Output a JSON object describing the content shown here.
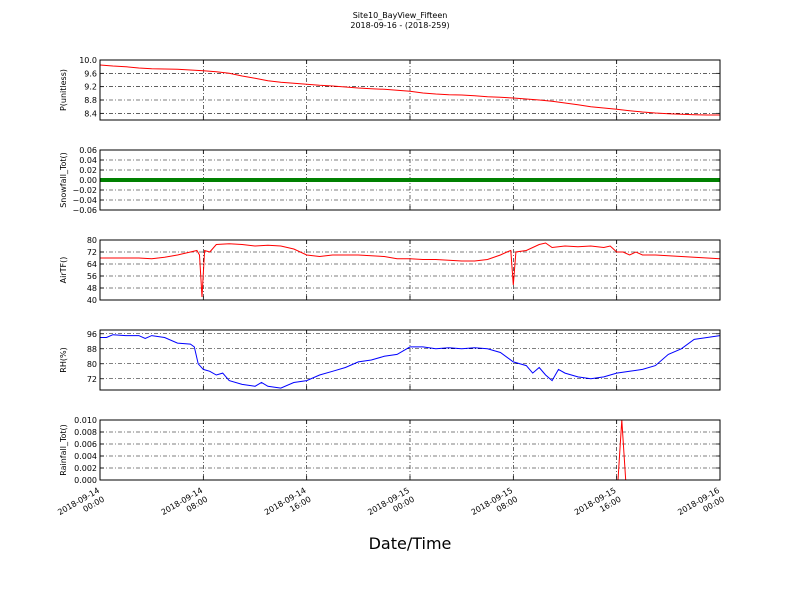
{
  "figure": {
    "title": "Site10_BayView_Fifteen",
    "subtitle": "2018-09-16 - (2018-259)",
    "xlabel": "Date/Time"
  },
  "chart_data": {
    "type": "line",
    "shared_x_ticks": [
      {
        "value": 0,
        "line1": "2018-09-14",
        "line2": "00:00"
      },
      {
        "value": 8,
        "line1": "2018-09-14",
        "line2": "08:00"
      },
      {
        "value": 16,
        "line1": "2018-09-14",
        "line2": "16:00"
      },
      {
        "value": 24,
        "line1": "2018-09-15",
        "line2": "00:00"
      },
      {
        "value": 32,
        "line1": "2018-09-15",
        "line2": "08:00"
      },
      {
        "value": 40,
        "line1": "2018-09-15",
        "line2": "16:00"
      },
      {
        "value": 48,
        "line1": "2018-09-16",
        "line2": "00:00"
      }
    ],
    "x_range_hours": [
      0,
      48
    ],
    "grid": true,
    "panels": [
      {
        "name": "p-unitless",
        "ylabel": "P(unitless)",
        "ylim": [
          8.2,
          10.0
        ],
        "yticks": [
          "10.0",
          "9.6",
          "9.2",
          "8.8",
          "8.4"
        ],
        "ytick_values": [
          10.0,
          9.6,
          9.2,
          8.8,
          8.4
        ],
        "color": "#ff0000",
        "points": [
          [
            0,
            9.85
          ],
          [
            1,
            9.82
          ],
          [
            2,
            9.8
          ],
          [
            3,
            9.76
          ],
          [
            4,
            9.74
          ],
          [
            5,
            9.73
          ],
          [
            6,
            9.72
          ],
          [
            7,
            9.7
          ],
          [
            8,
            9.68
          ],
          [
            9,
            9.65
          ],
          [
            10,
            9.6
          ],
          [
            11,
            9.52
          ],
          [
            12,
            9.45
          ],
          [
            13,
            9.38
          ],
          [
            14,
            9.33
          ],
          [
            15,
            9.3
          ],
          [
            16,
            9.27
          ],
          [
            17,
            9.24
          ],
          [
            18,
            9.22
          ],
          [
            19,
            9.19
          ],
          [
            20,
            9.16
          ],
          [
            21,
            9.14
          ],
          [
            22,
            9.12
          ],
          [
            23,
            9.09
          ],
          [
            24,
            9.06
          ],
          [
            25,
            9.01
          ],
          [
            26,
            8.98
          ],
          [
            27,
            8.96
          ],
          [
            28,
            8.95
          ],
          [
            29,
            8.93
          ],
          [
            30,
            8.9
          ],
          [
            31,
            8.88
          ],
          [
            32,
            8.86
          ],
          [
            33,
            8.83
          ],
          [
            34,
            8.8
          ],
          [
            35,
            8.76
          ],
          [
            36,
            8.71
          ],
          [
            37,
            8.66
          ],
          [
            38,
            8.6
          ],
          [
            39,
            8.56
          ],
          [
            40,
            8.52
          ],
          [
            41,
            8.48
          ],
          [
            42,
            8.44
          ],
          [
            43,
            8.41
          ],
          [
            44,
            8.39
          ],
          [
            45,
            8.37
          ],
          [
            46,
            8.36
          ],
          [
            47,
            8.35
          ],
          [
            48,
            8.35
          ]
        ]
      },
      {
        "name": "snowfall-tot",
        "ylabel": "Snowfall_Tot()",
        "ylim": [
          -0.06,
          0.06
        ],
        "yticks": [
          "0.06",
          "0.04",
          "0.02",
          "0.00",
          "−0.02",
          "−0.04",
          "−0.06"
        ],
        "ytick_values": [
          0.06,
          0.04,
          0.02,
          0.0,
          -0.02,
          -0.04,
          -0.06
        ],
        "color": "#008000",
        "style": "dense-markers",
        "points": [
          [
            0,
            0
          ],
          [
            48,
            0
          ]
        ]
      },
      {
        "name": "airtf",
        "ylabel": "AirTF()",
        "ylim": [
          40,
          80
        ],
        "yticks": [
          "80",
          "72",
          "64",
          "56",
          "48",
          "40"
        ],
        "ytick_values": [
          80,
          72,
          64,
          56,
          48,
          40
        ],
        "color": "#ff0000",
        "points": [
          [
            0,
            68
          ],
          [
            1,
            68
          ],
          [
            2,
            68
          ],
          [
            3,
            68
          ],
          [
            4,
            67.5
          ],
          [
            5,
            68.5
          ],
          [
            6,
            70
          ],
          [
            7,
            72
          ],
          [
            7.5,
            73
          ],
          [
            7.7,
            70
          ],
          [
            7.9,
            42
          ],
          [
            8.1,
            73
          ],
          [
            8.5,
            72
          ],
          [
            9,
            77
          ],
          [
            10,
            77.5
          ],
          [
            11,
            77
          ],
          [
            12,
            76
          ],
          [
            13,
            76.5
          ],
          [
            14,
            76
          ],
          [
            15,
            74
          ],
          [
            16,
            70
          ],
          [
            17,
            69
          ],
          [
            18,
            70
          ],
          [
            19,
            70
          ],
          [
            20,
            70
          ],
          [
            21,
            69.5
          ],
          [
            22,
            69
          ],
          [
            23,
            67.5
          ],
          [
            24,
            67.5
          ],
          [
            25,
            67
          ],
          [
            26,
            67
          ],
          [
            27,
            66.5
          ],
          [
            28,
            66
          ],
          [
            29,
            66
          ],
          [
            30,
            67
          ],
          [
            31,
            70
          ],
          [
            31.5,
            72
          ],
          [
            31.8,
            73
          ],
          [
            32,
            50
          ],
          [
            32.2,
            72
          ],
          [
            33,
            73
          ],
          [
            34,
            77
          ],
          [
            34.5,
            78
          ],
          [
            35,
            75
          ],
          [
            36,
            76
          ],
          [
            37,
            75.5
          ],
          [
            38,
            76
          ],
          [
            39,
            75
          ],
          [
            39.5,
            76
          ],
          [
            40,
            72
          ],
          [
            40.5,
            72
          ],
          [
            41,
            70
          ],
          [
            41.5,
            72
          ],
          [
            42,
            70
          ],
          [
            43,
            70
          ],
          [
            44,
            69.5
          ],
          [
            45,
            69
          ],
          [
            46,
            68.5
          ],
          [
            47,
            68
          ],
          [
            48,
            67.5
          ]
        ]
      },
      {
        "name": "rh",
        "ylabel": "RH(%)",
        "ylim": [
          66,
          98
        ],
        "yticks": [
          "96",
          "88",
          "80",
          "72"
        ],
        "ytick_values": [
          96,
          88,
          80,
          72
        ],
        "color": "#0000ff",
        "points": [
          [
            0,
            94
          ],
          [
            0.5,
            94
          ],
          [
            1,
            95.5
          ],
          [
            2,
            95
          ],
          [
            3,
            95
          ],
          [
            3.5,
            93.5
          ],
          [
            4,
            95
          ],
          [
            5,
            94
          ],
          [
            6,
            91
          ],
          [
            7,
            90.5
          ],
          [
            7.3,
            89
          ],
          [
            7.6,
            80
          ],
          [
            8,
            77
          ],
          [
            8.5,
            76
          ],
          [
            9,
            74
          ],
          [
            9.5,
            75
          ],
          [
            10,
            71
          ],
          [
            11,
            69
          ],
          [
            12,
            68
          ],
          [
            12.5,
            70
          ],
          [
            13,
            68
          ],
          [
            14,
            67
          ],
          [
            15,
            70
          ],
          [
            16,
            71
          ],
          [
            17,
            74
          ],
          [
            18,
            76
          ],
          [
            19,
            78
          ],
          [
            20,
            81
          ],
          [
            21,
            82
          ],
          [
            22,
            84
          ],
          [
            23,
            85
          ],
          [
            24,
            89
          ],
          [
            25,
            89
          ],
          [
            26,
            88
          ],
          [
            27,
            88.5
          ],
          [
            28,
            88
          ],
          [
            29,
            88.5
          ],
          [
            30,
            88
          ],
          [
            31,
            86
          ],
          [
            32,
            81
          ],
          [
            33,
            79
          ],
          [
            33.5,
            75
          ],
          [
            34,
            78
          ],
          [
            34.5,
            74
          ],
          [
            35,
            71
          ],
          [
            35.5,
            77
          ],
          [
            36,
            75
          ],
          [
            37,
            73
          ],
          [
            38,
            72
          ],
          [
            39,
            73
          ],
          [
            40,
            75
          ],
          [
            41,
            76
          ],
          [
            42,
            77
          ],
          [
            43,
            79
          ],
          [
            44,
            85
          ],
          [
            45,
            88
          ],
          [
            46,
            93
          ],
          [
            47,
            94
          ],
          [
            48,
            95
          ]
        ]
      },
      {
        "name": "rainfall-tot",
        "ylabel": "Rainfall_Tot()",
        "ylim": [
          0,
          0.01
        ],
        "yticks": [
          "0.010",
          "0.008",
          "0.006",
          "0.004",
          "0.002",
          "0.000"
        ],
        "ytick_values": [
          0.01,
          0.008,
          0.006,
          0.004,
          0.002,
          0.0
        ],
        "color": "#ff0000",
        "points": [
          [
            0,
            0
          ],
          [
            40.1,
            0
          ],
          [
            40.4,
            0.01
          ],
          [
            40.7,
            0
          ],
          [
            48,
            0
          ]
        ]
      }
    ]
  }
}
